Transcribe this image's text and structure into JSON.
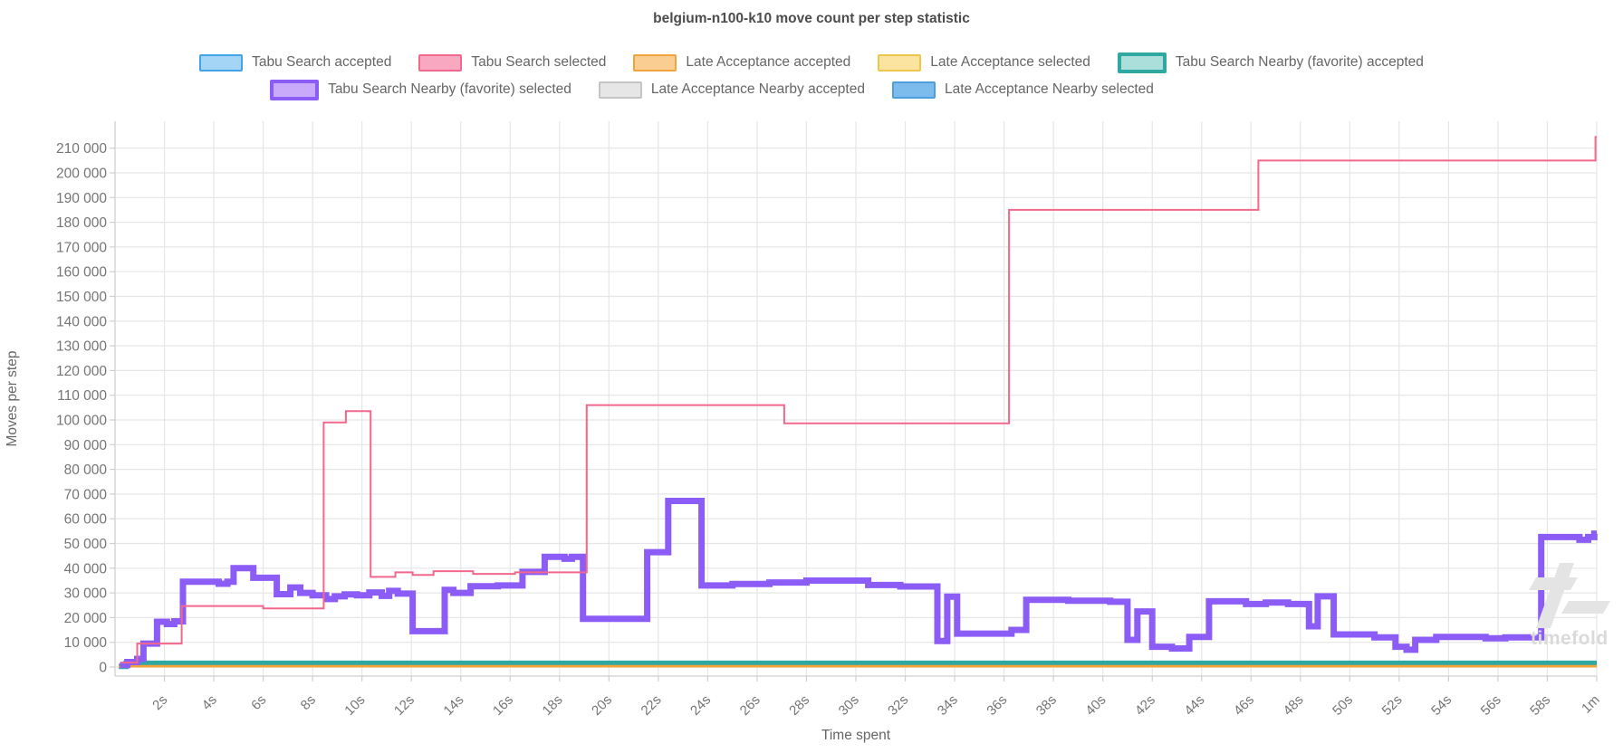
{
  "title": "belgium-n100-k10 move count per step statistic",
  "watermark": {
    "text": "timefold"
  },
  "legend": {
    "items": [
      {
        "row": 0,
        "label": "Tabu Search accepted",
        "fill": "#a5d5f6",
        "border": "#42a4e8",
        "thick": false
      },
      {
        "row": 0,
        "label": "Tabu Search selected",
        "fill": "#f9a8c2",
        "border": "#f2688c",
        "thick": false
      },
      {
        "row": 0,
        "label": "Late Acceptance accepted",
        "fill": "#facd92",
        "border": "#f2a33c",
        "thick": false
      },
      {
        "row": 0,
        "label": "Late Acceptance selected",
        "fill": "#fae4a0",
        "border": "#edc64b",
        "thick": false
      },
      {
        "row": 0,
        "label": "Tabu Search Nearby (favorite) accepted",
        "fill": "#aadfdb",
        "border": "#2fa8a2",
        "thick": true
      },
      {
        "row": 1,
        "label": "Tabu Search Nearby (favorite) selected",
        "fill": "#c9a9f9",
        "border": "#8b5cf6",
        "thick": true
      },
      {
        "row": 1,
        "label": "Late Acceptance Nearby accepted",
        "fill": "#e6e6e6",
        "border": "#c4c4c4",
        "thick": false
      },
      {
        "row": 1,
        "label": "Late Acceptance Nearby selected",
        "fill": "#7cbcec",
        "border": "#4e9edc",
        "thick": false
      }
    ]
  },
  "chart_data": {
    "type": "line",
    "step": true,
    "title": "belgium-n100-k10 move count per step statistic",
    "xlabel": "Time spent",
    "ylabel": "Moves per step",
    "x_unit": "seconds",
    "xlim": [
      0,
      60
    ],
    "ylim": [
      0,
      220000
    ],
    "y_tick_interval": 10000,
    "y_tick_max": 210000,
    "grid": true,
    "legend_position": "top",
    "x_tick_labels": [
      "2s",
      "4s",
      "6s",
      "8s",
      "10s",
      "12s",
      "14s",
      "16s",
      "18s",
      "20s",
      "22s",
      "24s",
      "26s",
      "28s",
      "30s",
      "32s",
      "34s",
      "36s",
      "38s",
      "40s",
      "42s",
      "44s",
      "46s",
      "48s",
      "50s",
      "52s",
      "54s",
      "56s",
      "58s",
      "1m"
    ],
    "series": [
      {
        "name": "Tabu Search accepted",
        "color": "#42a4e8",
        "width": 2,
        "points": [
          [
            0.15,
            250
          ],
          [
            0.45,
            1900
          ]
        ]
      },
      {
        "name": "Late Acceptance Nearby accepted",
        "color": "#c4c4c4",
        "width": 2,
        "points": [
          [
            0.15,
            150
          ],
          [
            0.45,
            950
          ]
        ]
      },
      {
        "name": "Late Acceptance Nearby selected",
        "color": "#4e9edc",
        "width": 2.5,
        "points": [
          [
            0.15,
            200
          ],
          [
            0.45,
            1300
          ]
        ]
      },
      {
        "name": "Late Acceptance selected",
        "color": "#edc64b",
        "width": 2,
        "points": [
          [
            0.15,
            60
          ],
          [
            0.45,
            160
          ]
        ]
      },
      {
        "name": "Tabu Search Nearby (favorite) accepted",
        "color": "#2fa8a2",
        "width": 6,
        "points": [
          [
            0.15,
            300
          ],
          [
            0.45,
            1500
          ]
        ]
      },
      {
        "name": "Late Acceptance accepted",
        "color": "#f2a33c",
        "width": 2.5,
        "points": [
          [
            0.15,
            100
          ],
          [
            0.45,
            380
          ]
        ]
      },
      {
        "name": "Tabu Search Nearby (favorite) selected",
        "color": "#8b5cf6",
        "width": 7,
        "points": [
          [
            0.2,
            800
          ],
          [
            0.5,
            2000
          ],
          [
            0.9,
            3300
          ],
          [
            1.15,
            9500
          ],
          [
            1.7,
            18300
          ],
          [
            2.1,
            17400
          ],
          [
            2.4,
            18500
          ],
          [
            2.75,
            34500
          ],
          [
            4.2,
            33700
          ],
          [
            4.55,
            34500
          ],
          [
            4.8,
            40000
          ],
          [
            5.6,
            36100
          ],
          [
            6.55,
            29500
          ],
          [
            7.1,
            32200
          ],
          [
            7.5,
            30000
          ],
          [
            8.0,
            29000
          ],
          [
            8.55,
            27500
          ],
          [
            8.9,
            28600
          ],
          [
            9.3,
            29400
          ],
          [
            9.8,
            29000
          ],
          [
            10.3,
            30200
          ],
          [
            10.8,
            28800
          ],
          [
            11.1,
            30800
          ],
          [
            11.45,
            29700
          ],
          [
            12.05,
            14500
          ],
          [
            13.35,
            31200
          ],
          [
            13.7,
            30000
          ],
          [
            14.4,
            32700
          ],
          [
            15.5,
            33000
          ],
          [
            16.5,
            38500
          ],
          [
            17.4,
            44600
          ],
          [
            18.2,
            43800
          ],
          [
            18.5,
            44600
          ],
          [
            18.95,
            19500
          ],
          [
            21.55,
            46500
          ],
          [
            22.4,
            67200
          ],
          [
            23.75,
            33000
          ],
          [
            25.0,
            33600
          ],
          [
            26.5,
            34200
          ],
          [
            28.0,
            35000
          ],
          [
            30.5,
            33200
          ],
          [
            31.8,
            32600
          ],
          [
            33.3,
            10500
          ],
          [
            33.7,
            28500
          ],
          [
            34.1,
            13500
          ],
          [
            36.3,
            15000
          ],
          [
            36.9,
            27200
          ],
          [
            38.6,
            26800
          ],
          [
            40.3,
            26400
          ],
          [
            41.0,
            11000
          ],
          [
            41.4,
            22500
          ],
          [
            42.0,
            8200
          ],
          [
            42.8,
            7500
          ],
          [
            43.5,
            12200
          ],
          [
            44.3,
            26600
          ],
          [
            45.8,
            25500
          ],
          [
            46.6,
            26100
          ],
          [
            47.5,
            25500
          ],
          [
            48.35,
            16500
          ],
          [
            48.7,
            28600
          ],
          [
            49.35,
            13200
          ],
          [
            51.0,
            12000
          ],
          [
            51.85,
            8200
          ],
          [
            52.3,
            7000
          ],
          [
            52.65,
            11000
          ],
          [
            53.5,
            12200
          ],
          [
            55.5,
            11600
          ],
          [
            56.3,
            12000
          ],
          [
            57.75,
            52600
          ],
          [
            59.3,
            51500
          ],
          [
            59.65,
            52600
          ],
          [
            59.9,
            54000
          ]
        ]
      },
      {
        "name": "Tabu Search selected",
        "color": "#f2688c",
        "width": 2,
        "points": [
          [
            0.25,
            1800
          ],
          [
            0.9,
            9500
          ],
          [
            2.7,
            24700
          ],
          [
            6.0,
            23700
          ],
          [
            8.45,
            99000
          ],
          [
            9.35,
            103600
          ],
          [
            10.35,
            36500
          ],
          [
            11.35,
            38300
          ],
          [
            12.05,
            37300
          ],
          [
            12.9,
            38800
          ],
          [
            14.5,
            37700
          ],
          [
            16.2,
            38300
          ],
          [
            19.1,
            106000
          ],
          [
            27.1,
            98600
          ],
          [
            36.2,
            185000
          ],
          [
            46.3,
            205000
          ],
          [
            59.95,
            214500
          ]
        ]
      }
    ],
    "colors": {
      "grid": "#e6e6e6",
      "axis": "#cfcfcf",
      "tick_text": "#757575",
      "axis_title_text": "#666666"
    }
  }
}
